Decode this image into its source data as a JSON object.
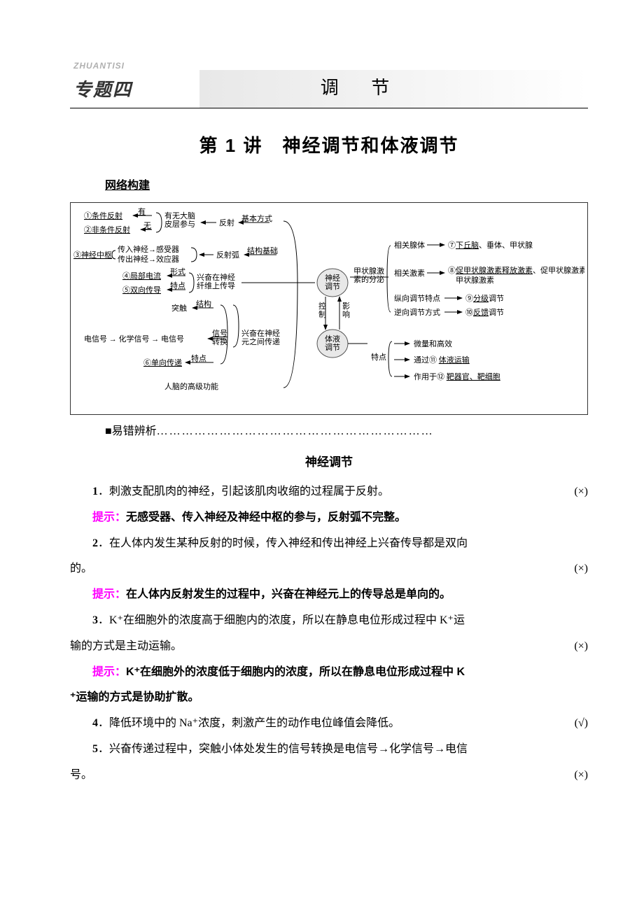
{
  "header": {
    "pinyin": "ZHUANTISI",
    "topic_label": "专题四",
    "topic_title": "调 节"
  },
  "main_title": "第 1 讲　神经调节和体液调节",
  "section1_label": "网络构建",
  "diagram": {
    "left": {
      "l1a": "①条件反射",
      "l1a_arrow": "有",
      "l1b": "②非条件反射",
      "l1b_arrow": "无",
      "l1_right": "有无大脑\n皮层参与",
      "l1_reflex": "反射",
      "l1_basic": "基本方式",
      "l2a": "③神经中枢",
      "l2b1": "传入神经→感受器",
      "l2b2": "传出神经→效应器",
      "l2c": "反射弧",
      "l2d": "结构基础",
      "l3a": "④局部电流",
      "l3a_lbl": "形式",
      "l3b": "⑤双向传导",
      "l3b_lbl": "特点",
      "l3c": "兴奋在神经\n纤维上传导",
      "l4a": "突触",
      "l4a_lbl": "结构",
      "l5a": "电信号 → 化学信号 → 电信号",
      "l5b": "信号\n转换",
      "l5c": "兴奋在神经\n元之间传递",
      "l6a": "⑥单向传递",
      "l6a_lbl": "特点",
      "l7": "人脑的高级功能"
    },
    "center": {
      "node1": "神经\n调节",
      "node2": "体液\n调节",
      "rel1": "控\n制",
      "rel2": "影\n响"
    },
    "right": {
      "r0": "甲状腺激\n素的分泌",
      "r1_lbl": "相关腺体",
      "r1": "⑦下丘脑、垂体、甲状腺",
      "r2_lbl": "相关激素",
      "r2": "⑧促甲状腺激素释放激素、促甲状腺激素、\n　甲状腺激素",
      "r3_lbl": "纵向调节特点",
      "r3": "⑨分级调节",
      "r4_lbl": "逆向调节方式",
      "r4": "⑩反馈调节",
      "r5_lbl": "特点",
      "r5a": "微量和高效",
      "r5b": "通过⑪ 体液运输",
      "r5c": "作用于⑫ 靶器官、靶细胞"
    }
  },
  "error_label": "■易错辨析",
  "sub_title": "神经调节",
  "items": [
    {
      "type": "q",
      "n": "1",
      "text": "．刺激支配肌肉的神经，引起该肌肉收缩的过程属于反射。",
      "mark": "(×)"
    },
    {
      "type": "hint",
      "text": "无感受器、传入神经及神经中枢的参与，反射弧不完整。"
    },
    {
      "type": "q2",
      "n": "2",
      "text1": "．在人体内发生某种反射的时候，传入神经和传出神经上兴奋传导都是双向",
      "text2": "的。",
      "mark": "(×)"
    },
    {
      "type": "hint",
      "text": "在人体内反射发生的过程中，兴奋在神经元上的传导总是单向的。"
    },
    {
      "type": "q2",
      "n": "3",
      "text1": "．K⁺在细胞外的浓度高于细胞内的浓度，所以在静息电位形成过程中 K⁺运",
      "text2": "输的方式是主动运输。",
      "mark": "(×)"
    },
    {
      "type": "hint2",
      "text1": "K⁺在细胞外的浓度低于细胞内的浓度，所以在静息电位形成过程中 K",
      "text2": "⁺运输的方式是协助扩散。"
    },
    {
      "type": "q",
      "n": "4",
      "text": "．降低环境中的 Na⁺浓度，刺激产生的动作电位峰值会降低。",
      "mark": "(√)"
    },
    {
      "type": "q2",
      "n": "5",
      "text1": "．兴奋传递过程中，突触小体处发生的信号转换是电信号→化学信号→电信",
      "text2": "号。",
      "mark": "(×)"
    }
  ],
  "hint_label": "提示："
}
